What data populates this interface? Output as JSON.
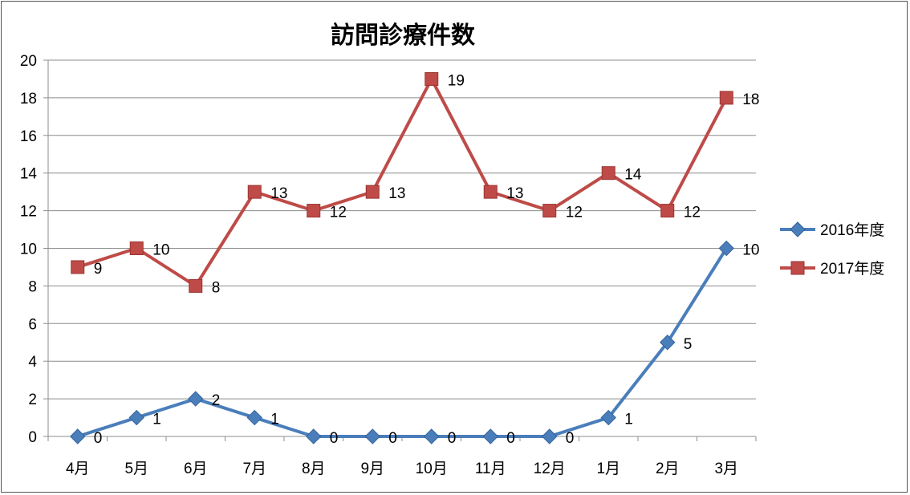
{
  "chart_data": {
    "type": "line",
    "title": "訪問診療件数",
    "categories": [
      "4月",
      "5月",
      "6月",
      "7月",
      "8月",
      "9月",
      "10月",
      "11月",
      "12月",
      "1月",
      "2月",
      "3月"
    ],
    "series": [
      {
        "name": "2016年度",
        "values": [
          0,
          1,
          2,
          1,
          0,
          0,
          0,
          0,
          0,
          1,
          5,
          10
        ],
        "color": "#4a7ebb",
        "marker": "diamond"
      },
      {
        "name": "2017年度",
        "values": [
          9,
          10,
          8,
          13,
          12,
          13,
          19,
          13,
          12,
          14,
          12,
          18
        ],
        "color": "#be4b48",
        "marker": "square"
      }
    ],
    "yticks": [
      "0",
      "2",
      "4",
      "6",
      "8",
      "10",
      "12",
      "14",
      "16",
      "18",
      "20"
    ],
    "ylim": [
      0,
      20
    ],
    "grid": true,
    "data_labels": true,
    "legend_position": "right"
  }
}
